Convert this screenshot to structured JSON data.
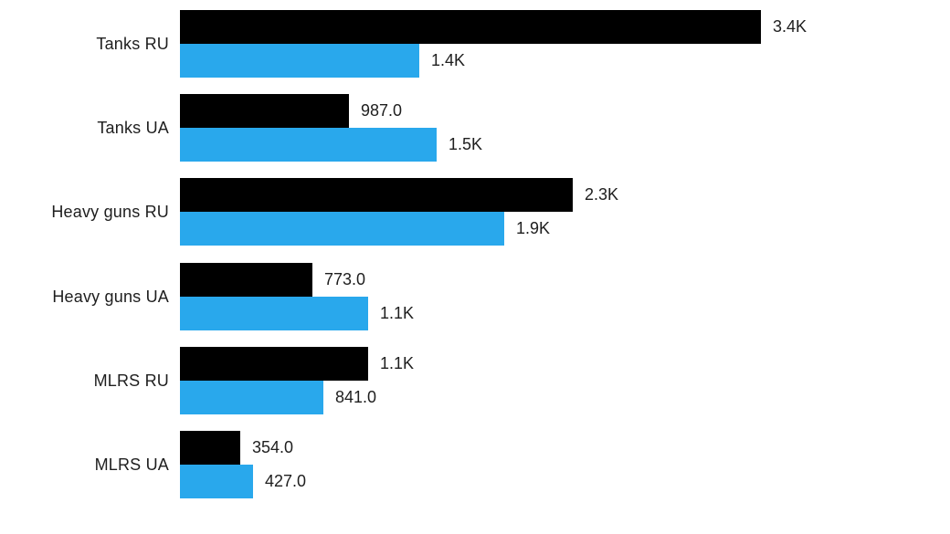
{
  "chart_data": {
    "type": "bar",
    "orientation": "horizontal",
    "title": "",
    "xlabel": "",
    "ylabel": "",
    "grid": false,
    "legend_position": "none",
    "xlim": [
      0,
      3600
    ],
    "categories": [
      "Tanks RU",
      "Tanks UA",
      "Heavy guns RU",
      "Heavy guns UA",
      "MLRS RU",
      "MLRS UA"
    ],
    "series": [
      {
        "name": "black-series",
        "color": "#000000",
        "values": [
          3400,
          987,
          2300,
          773,
          1100,
          354
        ],
        "labels": [
          "3.4K",
          "987.0",
          "2.3K",
          "773.0",
          "1.1K",
          "354.0"
        ]
      },
      {
        "name": "blue-series",
        "color": "#29A8EC",
        "values": [
          1400,
          1500,
          1900,
          1100,
          841,
          427
        ],
        "labels": [
          "1.4K",
          "1.5K",
          "1.9K",
          "1.1K",
          "841.0",
          "427.0"
        ]
      }
    ],
    "colors": {
      "bar_black": "#000000",
      "bar_blue": "#29A8EC",
      "text": "#1e1e1e",
      "background": "#ffffff"
    }
  }
}
